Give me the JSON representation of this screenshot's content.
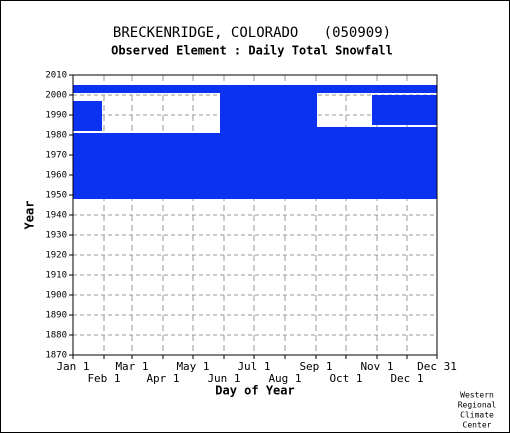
{
  "chart_data": {
    "type": "coverage",
    "title": "BRECKENRIDGE, COLORADO   (050909)",
    "subtitle": "Observed Element : Daily Total Snowfall",
    "x_label": "Day of Year",
    "y_label": "Year",
    "credit": [
      "Western",
      "Regional",
      "Climate",
      "Center"
    ],
    "color": "#0a32f0",
    "xlim": [
      1,
      365
    ],
    "ylim": [
      1870,
      2010
    ],
    "xticks": [
      {
        "value": 1,
        "label": "Jan 1"
      },
      {
        "value": 32,
        "label": "Feb 1"
      },
      {
        "value": 60,
        "label": "Mar 1"
      },
      {
        "value": 91,
        "label": "Apr 1"
      },
      {
        "value": 121,
        "label": "May 1"
      },
      {
        "value": 152,
        "label": "Jun 1"
      },
      {
        "value": 182,
        "label": "Jul 1"
      },
      {
        "value": 213,
        "label": "Aug 1"
      },
      {
        "value": 244,
        "label": "Sep 1"
      },
      {
        "value": 274,
        "label": "Oct 1"
      },
      {
        "value": 305,
        "label": "Nov 1"
      },
      {
        "value": 335,
        "label": "Dec 1"
      },
      {
        "value": 365,
        "label": "Dec 31"
      }
    ],
    "yticks": [
      1870,
      1880,
      1890,
      1900,
      1910,
      1920,
      1930,
      1940,
      1950,
      1960,
      1970,
      1980,
      1990,
      2000,
      2010
    ],
    "grid": true,
    "blocks": [
      {
        "x": [
          1,
          365
        ],
        "y": [
          1948,
          1977
        ]
      },
      {
        "x": [
          1,
          365
        ],
        "y": [
          2001,
          2005
        ]
      },
      {
        "x": [
          148,
          245
        ],
        "y": [
          1977,
          2001
        ]
      },
      {
        "x": [
          1,
          148
        ],
        "y": [
          1977,
          1981
        ]
      },
      {
        "x": [
          1,
          30
        ],
        "y": [
          1982,
          1997
        ]
      },
      {
        "x": [
          245,
          365
        ],
        "y": [
          1977,
          1984
        ]
      },
      {
        "x": [
          300,
          365
        ],
        "y": [
          1985,
          2000
        ]
      }
    ]
  }
}
